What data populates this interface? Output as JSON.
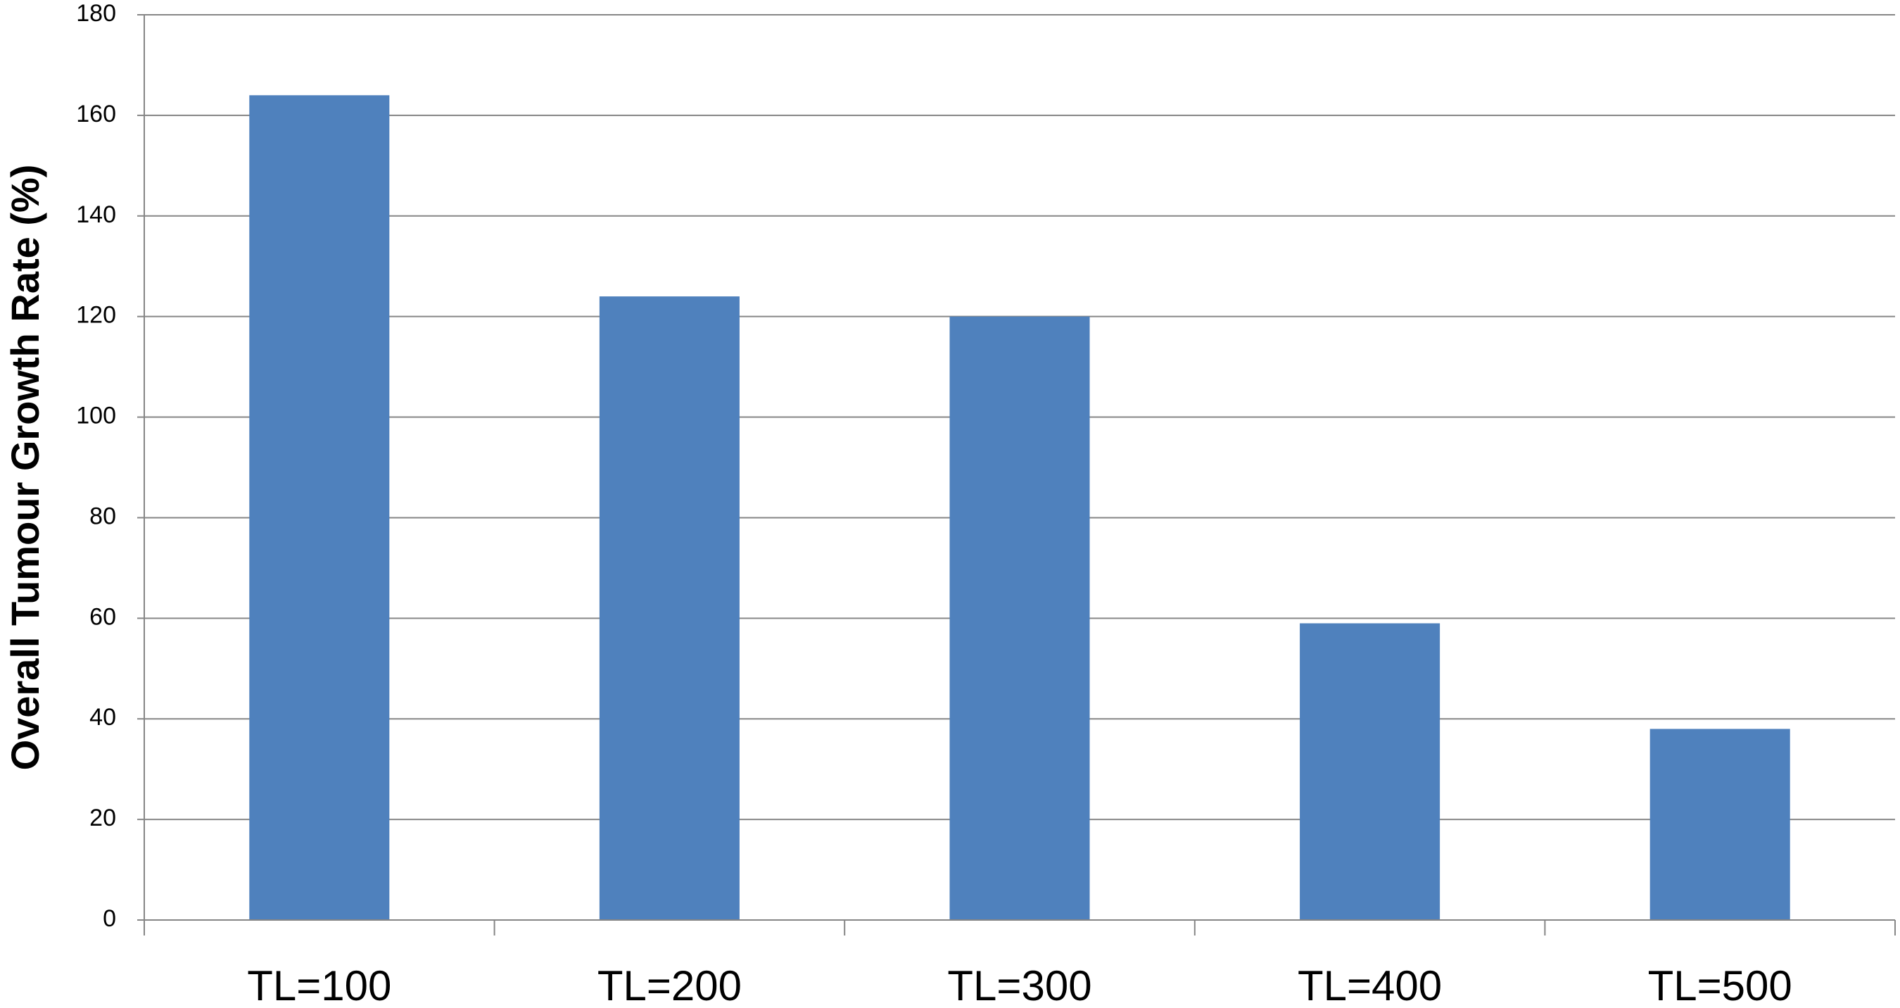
{
  "chart_data": {
    "type": "bar",
    "y_label": "Overall Tumour Growth Rate (%)",
    "categories": [
      "TL=100",
      "TL=200",
      "TL=300",
      "TL=400",
      "TL=500"
    ],
    "values": [
      164,
      124,
      120,
      59,
      38
    ],
    "color": "#4f81bd",
    "ylim": [
      0,
      180
    ],
    "yticks": [
      0,
      20,
      40,
      60,
      80,
      100,
      120,
      140,
      160,
      180
    ],
    "grid": true
  }
}
